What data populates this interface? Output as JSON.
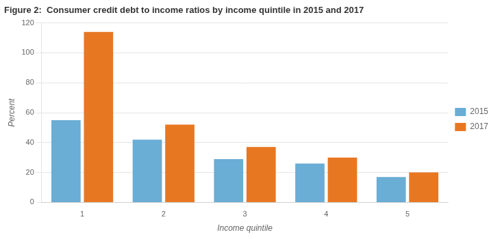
{
  "chart_data": {
    "type": "bar",
    "title": "Figure 2:  Consumer credit debt to income ratios by income quintile in 2015 and 2017",
    "categories": [
      "1",
      "2",
      "3",
      "4",
      "5"
    ],
    "series": [
      {
        "name": "2015",
        "color": "#6aadd5",
        "values": [
          55,
          42,
          29,
          26,
          17
        ]
      },
      {
        "name": "2017",
        "color": "#e87722",
        "values": [
          114,
          52,
          37,
          30,
          20
        ]
      }
    ],
    "xlabel": "Income quintile",
    "ylabel": "Percent",
    "ylim": [
      0,
      120
    ],
    "yticks": [
      0,
      20,
      40,
      60,
      80,
      100,
      120
    ],
    "grid": true,
    "legend": "right"
  }
}
